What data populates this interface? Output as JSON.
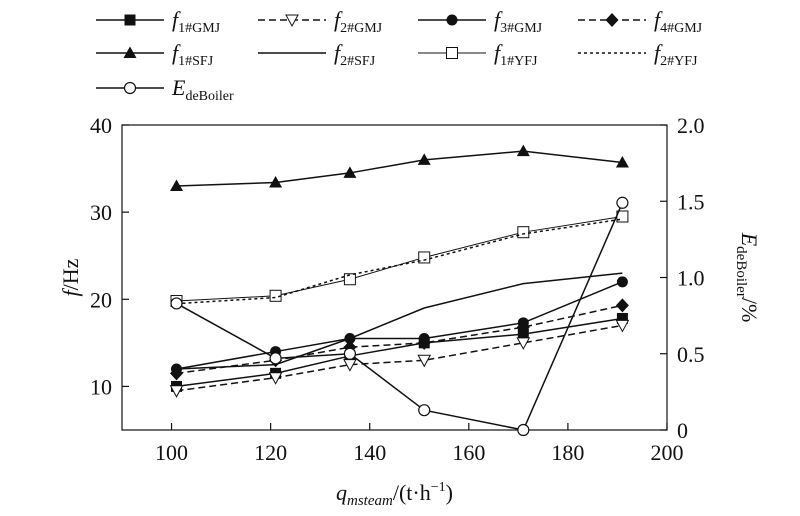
{
  "chart_data": {
    "type": "line",
    "x": [
      101,
      121,
      136,
      151,
      171,
      191
    ],
    "xlim": [
      90,
      200
    ],
    "ylim": [
      5,
      40
    ],
    "y2lim": [
      0,
      2.0
    ],
    "x_ticks": [
      "100",
      "120",
      "140",
      "160",
      "180",
      "200"
    ],
    "y_ticks": [
      "10",
      "20",
      "30",
      "40"
    ],
    "y2_ticks": [
      "0",
      "0.5",
      "1.0",
      "1.5",
      "2.0"
    ],
    "xlabel": {
      "main": "q",
      "sub": "msteam",
      "tail": "/(t·h",
      "sup": "−1",
      "end": ")"
    },
    "ylabel": {
      "main": "f",
      "tail": "/Hz"
    },
    "y2label": {
      "main": "E",
      "sub": "deBoiler",
      "tail": "/%"
    },
    "legend_position": "top",
    "grid": false,
    "series": [
      {
        "id": "f1GMJ",
        "main": "f",
        "sub": "1#GMJ",
        "axis": "left",
        "dash": "solid",
        "marker": "square-filled",
        "values": [
          10.0,
          11.5,
          13.5,
          15.0,
          16.0,
          17.8
        ]
      },
      {
        "id": "f2GMJ",
        "main": "f",
        "sub": "2#GMJ",
        "axis": "left",
        "dash": "dashed",
        "marker": "triangle-down-open",
        "values": [
          9.5,
          11.0,
          12.5,
          13.0,
          15.0,
          17.0
        ]
      },
      {
        "id": "f3GMJ",
        "main": "f",
        "sub": "3#GMJ",
        "axis": "left",
        "dash": "solid",
        "marker": "circle-filled",
        "values": [
          12.0,
          14.0,
          15.5,
          15.5,
          17.3,
          22.0
        ]
      },
      {
        "id": "f4GMJ",
        "main": "f",
        "sub": "4#GMJ",
        "axis": "left",
        "dash": "dashed",
        "marker": "diamond-filled",
        "values": [
          11.5,
          13.0,
          14.5,
          15.0,
          16.8,
          19.3
        ]
      },
      {
        "id": "f1SFJ",
        "main": "f",
        "sub": "1#SFJ",
        "axis": "left",
        "dash": "solid",
        "marker": "triangle-up-filled",
        "values": [
          33.0,
          33.4,
          34.5,
          36.0,
          37.0,
          35.7
        ]
      },
      {
        "id": "f2SFJ",
        "main": "f",
        "sub": "2#SFJ",
        "axis": "left",
        "dash": "solid",
        "marker": "none",
        "values": [
          12.0,
          12.5,
          15.5,
          19.0,
          21.8,
          23.0
        ]
      },
      {
        "id": "f1YFJ",
        "main": "f",
        "sub": "1#YFJ",
        "axis": "left",
        "dash": "thin",
        "marker": "square-open",
        "values": [
          19.8,
          20.4,
          22.3,
          24.8,
          27.7,
          29.5
        ]
      },
      {
        "id": "f2YFJ",
        "main": "f",
        "sub": "2#YFJ",
        "axis": "left",
        "dash": "dotted",
        "marker": "none",
        "values": [
          19.5,
          20.2,
          22.8,
          24.5,
          27.5,
          29.2
        ]
      },
      {
        "id": "EdeBoiler",
        "main": "E",
        "sub": "deBoiler",
        "axis": "right",
        "dash": "solid",
        "marker": "circle-open",
        "values": [
          0.83,
          0.47,
          0.5,
          0.13,
          0.0,
          1.49
        ]
      }
    ]
  }
}
